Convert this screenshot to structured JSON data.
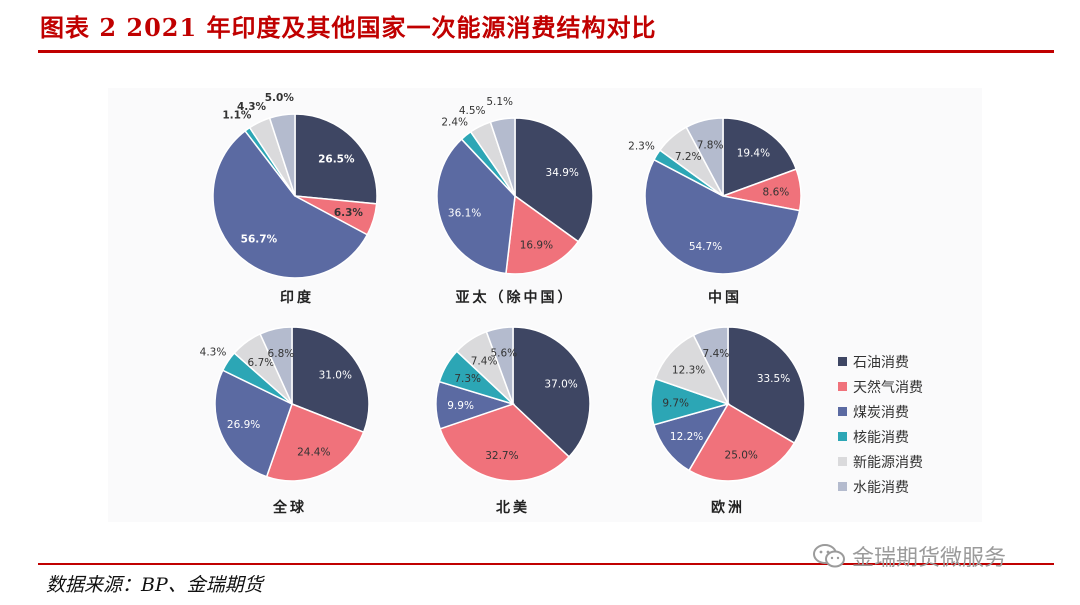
{
  "title": "图表 2 2021 年印度及其他国家一次能源消费结构对比",
  "source": "数据来源：BP、金瑞期货",
  "watermark": "金瑞期货微服务",
  "colors": [
    "#3e4663",
    "#f0727b",
    "#5b6aa2",
    "#2ca6b5",
    "#dadadc",
    "#b4bbce"
  ],
  "chart_data": [
    {
      "type": "pie",
      "title": "印度",
      "categories": [
        "石油消费",
        "天然气消费",
        "煤炭消费",
        "核能消费",
        "新能源消费",
        "水能消费"
      ],
      "values": [
        26.5,
        6.3,
        56.7,
        1.1,
        4.3,
        5.0
      ],
      "labels": [
        "26.5%",
        "6.3%",
        "56.7%",
        "1.1%",
        "4.3%",
        "5.0%"
      ]
    },
    {
      "type": "pie",
      "title": "亚太（除中国）",
      "categories": [
        "石油消费",
        "天然气消费",
        "煤炭消费",
        "核能消费",
        "新能源消费",
        "水能消费"
      ],
      "values": [
        34.9,
        16.9,
        36.1,
        2.4,
        4.5,
        5.1
      ],
      "labels": [
        "34.9%",
        "16.9%",
        "36.1%",
        "2.4%",
        "4.5%",
        "5.1%"
      ]
    },
    {
      "type": "pie",
      "title": "中国",
      "categories": [
        "石油消费",
        "天然气消费",
        "煤炭消费",
        "核能消费",
        "新能源消费",
        "水能消费"
      ],
      "values": [
        19.4,
        8.6,
        54.7,
        2.3,
        7.2,
        7.8
      ],
      "labels": [
        "19.4%",
        "8.6%",
        "54.7%",
        "2.3%",
        "7.2%",
        "7.8%"
      ]
    },
    {
      "type": "pie",
      "title": "全球",
      "categories": [
        "石油消费",
        "天然气消费",
        "煤炭消费",
        "核能消费",
        "新能源消费",
        "水能消费"
      ],
      "values": [
        31.0,
        24.4,
        26.9,
        4.3,
        6.7,
        6.8
      ],
      "labels": [
        "31.0%",
        "24.4%",
        "26.9%",
        "4.3%",
        "6.7%",
        "6.8%"
      ]
    },
    {
      "type": "pie",
      "title": "北美",
      "categories": [
        "石油消费",
        "天然气消费",
        "煤炭消费",
        "核能消费",
        "新能源消费",
        "水能消费"
      ],
      "values": [
        37.0,
        32.7,
        9.9,
        7.3,
        7.4,
        5.6
      ],
      "labels": [
        "37.0%",
        "32.7%",
        "9.9%",
        "7.3%",
        "7.4%",
        "5.6%"
      ]
    },
    {
      "type": "pie",
      "title": "欧洲",
      "categories": [
        "石油消费",
        "天然气消费",
        "煤炭消费",
        "核能消费",
        "新能源消费",
        "水能消费"
      ],
      "values": [
        33.5,
        25.0,
        12.2,
        9.7,
        12.3,
        7.4
      ],
      "labels": [
        "33.5%",
        "25.0%",
        "12.2%",
        "9.7%",
        "12.3%",
        "7.4%"
      ]
    }
  ],
  "legend": [
    "石油消费",
    "天然气消费",
    "煤炭消费",
    "核能消费",
    "新能源消费",
    "水能消费"
  ]
}
